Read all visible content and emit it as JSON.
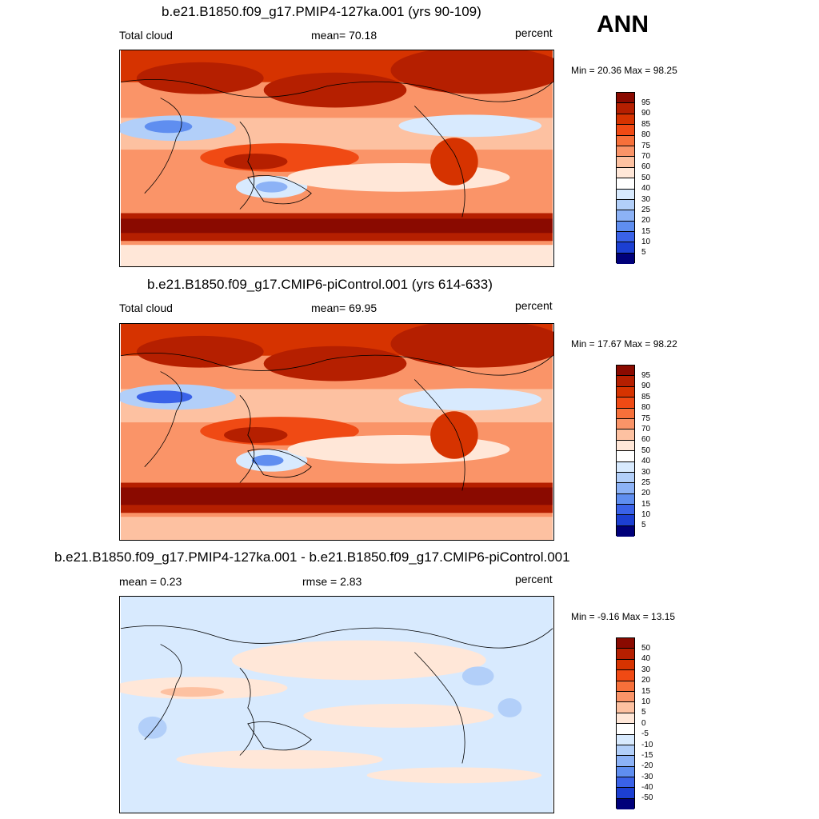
{
  "season": "ANN",
  "colors": {
    "abs_scale": [
      "#8a0a00",
      "#b51f00",
      "#d63300",
      "#f04a14",
      "#f7703a",
      "#fa9468",
      "#fdc1a1",
      "#ffe7d8",
      "#ffffff",
      "#d8eafe",
      "#b2cff9",
      "#8cb2f6",
      "#5f8ef0",
      "#3a62e8",
      "#1c3fd2",
      "#0a1ea6",
      "#00007a"
    ],
    "diff_scale": [
      "#8a0a00",
      "#b51f00",
      "#d63300",
      "#f04a14",
      "#f7703a",
      "#fa9468",
      "#fdc1a1",
      "#ffe7d8",
      "#ffffff",
      "#d8eafe",
      "#b2cff9",
      "#8cb2f6",
      "#5f8ef0",
      "#3a62e8",
      "#1c3fd2",
      "#0a1ea6",
      "#00007a"
    ]
  },
  "panels": [
    {
      "title": "b.e21.B1850.f09_g17.PMIP4-127ka.001 (yrs 90-109)",
      "left_label": "Total cloud",
      "center_label": "mean=  70.18",
      "units": "percent",
      "minmax": "Min =  20.36 Max =  98.25",
      "cbar_labels": [
        "95",
        "90",
        "85",
        "80",
        "75",
        "70",
        "60",
        "50",
        "40",
        "30",
        "25",
        "20",
        "15",
        "10",
        "5"
      ]
    },
    {
      "title": "b.e21.B1850.f09_g17.CMIP6-piControl.001 (yrs 614-633)",
      "left_label": "Total cloud",
      "center_label": "mean=  69.95",
      "units": "percent",
      "minmax": "Min =  17.67 Max =  98.22",
      "cbar_labels": [
        "95",
        "90",
        "85",
        "80",
        "75",
        "70",
        "60",
        "50",
        "40",
        "30",
        "25",
        "20",
        "15",
        "10",
        "5"
      ]
    },
    {
      "title": "b.e21.B1850.f09_g17.PMIP4-127ka.001 - b.e21.B1850.f09_g17.CMIP6-piControl.001",
      "left_label": "mean =   0.23",
      "center_label": "rmse =   2.83",
      "units": "percent",
      "minmax": "Min =  -9.16 Max =  13.15",
      "cbar_labels": [
        "50",
        "40",
        "30",
        "20",
        "15",
        "10",
        "5",
        "0",
        "-5",
        "-10",
        "-15",
        "-20",
        "-30",
        "-40",
        "-50"
      ]
    }
  ]
}
